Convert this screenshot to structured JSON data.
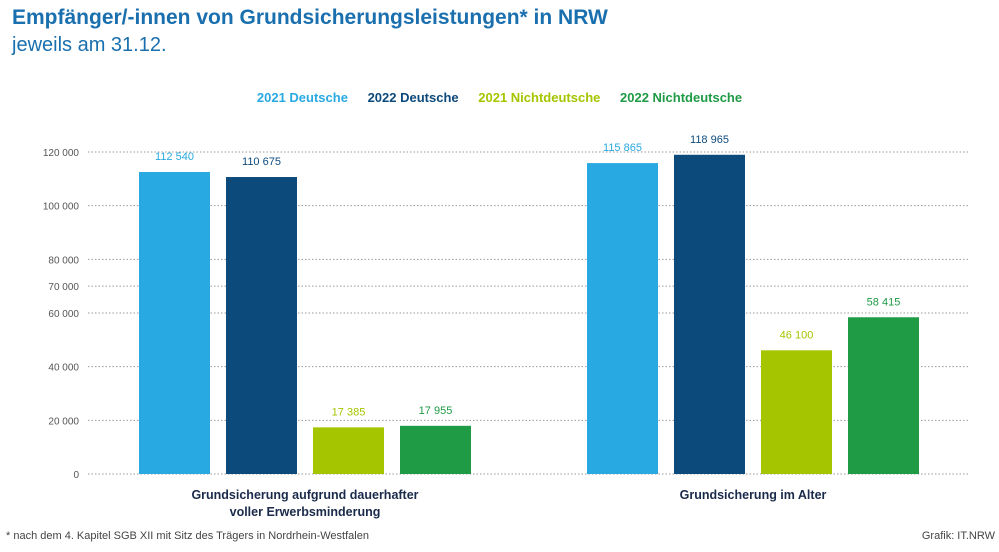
{
  "header": {
    "title": "Empfänger/-innen von Grundsicherungsleistungen* in NRW",
    "subtitle": "jeweils am 31.12."
  },
  "colors": {
    "s2021d": "#29a9e1",
    "s2022d": "#0d4a7c",
    "s2021n": "#a5c500",
    "s2022n": "#1f9a45",
    "axis_text": "#555555",
    "grid": "#9a9a9a",
    "category_text": "#1a2a4a"
  },
  "chart_data": {
    "type": "bar",
    "title": "Empfänger/-innen von Grundsicherungsleistungen* in NRW",
    "subtitle": "jeweils am 31.12.",
    "categories": [
      [
        "Grundsicherung aufgrund dauerhafter",
        "voller Erwerbsminderung"
      ],
      [
        "Grundsicherung im Alter"
      ]
    ],
    "series": [
      {
        "name": "2021 Deutsche",
        "values": [
          112540,
          115865
        ],
        "labels": [
          "112 540",
          "115 865"
        ],
        "color": "#29a9e1"
      },
      {
        "name": "2022 Deutsche",
        "values": [
          110675,
          118965
        ],
        "labels": [
          "110 675",
          "118 965"
        ],
        "color": "#0d4a7c"
      },
      {
        "name": "2021 Nichtdeutsche",
        "values": [
          17385,
          46100
        ],
        "labels": [
          "17 385",
          "46 100"
        ],
        "color": "#a5c500"
      },
      {
        "name": "2022 Nichtdeutsche",
        "values": [
          17955,
          58415
        ],
        "labels": [
          "17 955",
          "58 415"
        ],
        "color": "#1f9a45"
      }
    ],
    "yticks": [
      {
        "value": 0,
        "label": "0"
      },
      {
        "value": 20000,
        "label": "20 000"
      },
      {
        "value": 40000,
        "label": "40 000"
      },
      {
        "value": 60000,
        "label": "60 000"
      },
      {
        "value": 70000,
        "label": "70 000"
      },
      {
        "value": 80000,
        "label": "80 000"
      },
      {
        "value": 100000,
        "label": "100 000"
      },
      {
        "value": 120000,
        "label": "120 000"
      }
    ],
    "grid": true,
    "legend_position": "top-center"
  },
  "footer": {
    "footnote": "* nach dem 4. Kapitel SGB XII mit Sitz des Trägers in Nordrhein-Westfalen",
    "source": "Grafik: IT.NRW"
  }
}
